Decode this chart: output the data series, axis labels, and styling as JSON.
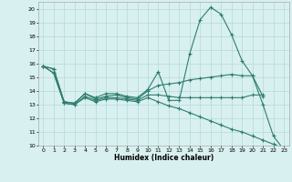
{
  "title": "",
  "xlabel": "Humidex (Indice chaleur)",
  "x": [
    0,
    1,
    2,
    3,
    4,
    5,
    6,
    7,
    8,
    9,
    10,
    11,
    12,
    13,
    14,
    15,
    16,
    17,
    18,
    19,
    20,
    21,
    22,
    23
  ],
  "line1": [
    15.8,
    15.6,
    13.2,
    13.1,
    13.8,
    13.5,
    13.8,
    13.8,
    13.6,
    13.5,
    14.1,
    15.4,
    13.3,
    13.3,
    16.7,
    19.2,
    20.1,
    19.6,
    18.1,
    16.2,
    15.1,
    13.0,
    10.7,
    9.7
  ],
  "line2": [
    15.8,
    15.6,
    13.2,
    13.1,
    13.8,
    13.4,
    13.6,
    13.7,
    13.5,
    13.4,
    14.0,
    14.4,
    14.5,
    14.6,
    14.8,
    14.9,
    15.0,
    15.1,
    15.2,
    15.1,
    15.1,
    13.6,
    null,
    null
  ],
  "line3": [
    15.8,
    15.3,
    13.1,
    13.0,
    13.6,
    13.3,
    13.5,
    13.5,
    13.4,
    13.3,
    13.7,
    13.7,
    13.6,
    13.5,
    13.5,
    13.5,
    13.5,
    13.5,
    13.5,
    13.5,
    13.7,
    13.7,
    null,
    null
  ],
  "line4": [
    15.8,
    15.3,
    13.1,
    13.0,
    13.5,
    13.2,
    13.4,
    13.4,
    13.3,
    13.2,
    13.5,
    13.2,
    12.9,
    12.7,
    12.4,
    12.1,
    11.8,
    11.5,
    11.2,
    11.0,
    10.7,
    10.4,
    10.1,
    9.8
  ],
  "line_color": "#2e7d6e",
  "bg_color": "#d8f0f0",
  "grid_color": "#b8d8d8",
  "ylim": [
    10,
    20.5
  ],
  "xlim": [
    -0.5,
    23.5
  ],
  "yticks": [
    10,
    11,
    12,
    13,
    14,
    15,
    16,
    17,
    18,
    19,
    20
  ],
  "xticks": [
    0,
    1,
    2,
    3,
    4,
    5,
    6,
    7,
    8,
    9,
    10,
    11,
    12,
    13,
    14,
    15,
    16,
    17,
    18,
    19,
    20,
    21,
    22,
    23
  ]
}
